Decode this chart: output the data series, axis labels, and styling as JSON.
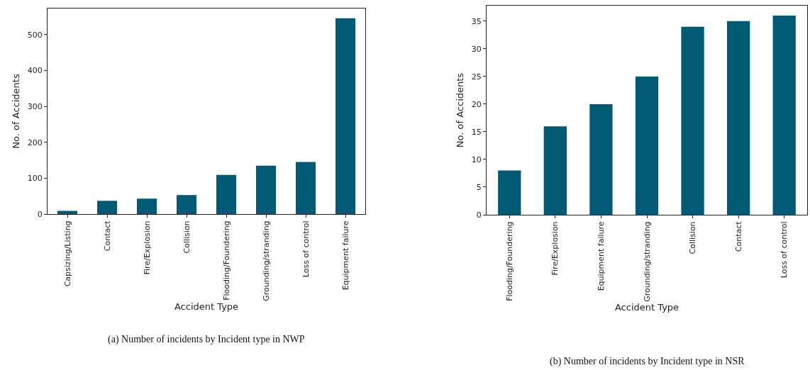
{
  "chart_data": [
    {
      "type": "bar",
      "xlabel": "Accident Type",
      "ylabel": "No. of Accidents",
      "categories": [
        "Capsizing/Listing",
        "Contact",
        "Fire/Explosion",
        "Collision",
        "Flooding/Foundering",
        "Grounding/stranding",
        "Loss of control",
        "Equipment failure"
      ],
      "values": [
        9,
        37,
        43,
        53,
        109,
        135,
        145,
        546
      ],
      "color": "#005a73",
      "ylim": [
        0,
        573
      ],
      "yticks": [
        0,
        100,
        200,
        300,
        400,
        500
      ],
      "grid": false,
      "legend": false,
      "annotations": [
        "(a) Number of incidents by Incident type in NWP"
      ]
    },
    {
      "type": "bar",
      "xlabel": "Accident Type",
      "ylabel": "No. of Accidents",
      "categories": [
        "Flooding/Foundering",
        "Fire/Explosion",
        "Equipment failure",
        "Grounding/stranding",
        "Collision",
        "Contact",
        "Loss of control"
      ],
      "values": [
        8,
        16,
        20,
        25,
        34,
        35,
        36
      ],
      "color": "#005a73",
      "ylim": [
        0,
        37.8
      ],
      "yticks": [
        0,
        5,
        10,
        15,
        20,
        25,
        30,
        35
      ],
      "grid": false,
      "legend": false,
      "annotations": [
        "(b) Number of incidents by Incident type in NSR"
      ]
    }
  ]
}
